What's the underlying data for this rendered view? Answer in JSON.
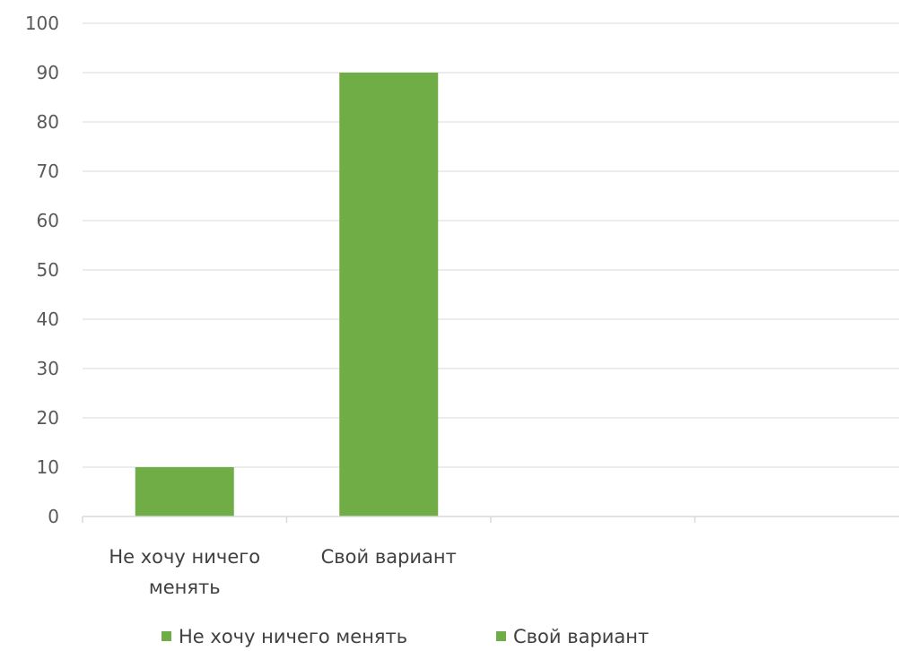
{
  "chart_data": {
    "type": "bar",
    "title": "",
    "xlabel": "",
    "ylabel": "",
    "categories": [
      [
        "Не хочу ничего",
        "менять"
      ],
      [
        "Свой вариант"
      ],
      [],
      []
    ],
    "series": [
      {
        "name": "Не хочу ничего менять",
        "values": [
          10,
          null,
          null,
          null
        ],
        "color": "#70AD47"
      },
      {
        "name": "Свой вариант",
        "values": [
          null,
          90,
          null,
          null
        ],
        "color": "#70AD47"
      }
    ],
    "ylim": [
      0,
      100
    ],
    "yticks": [
      "0",
      "10",
      "20",
      "30",
      "40",
      "50",
      "60",
      "70",
      "80",
      "90",
      "100"
    ],
    "grid": true,
    "legend": "bottom",
    "gridColor": "#D9D9D9",
    "axisColor": "#D9D9D9"
  }
}
